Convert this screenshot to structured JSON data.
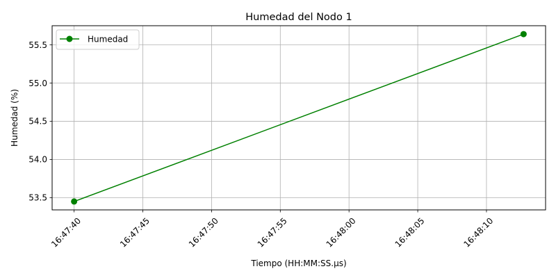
{
  "chart_data": {
    "type": "line",
    "title": "Humedad del Nodo 1",
    "xlabel": "Tiempo (HH:MM:SS.µs)",
    "ylabel": "Humedad (%)",
    "x_ticks": [
      "16:47:40",
      "16:47:45",
      "16:47:50",
      "16:47:55",
      "16:48:00",
      "16:48:05",
      "16:48:10"
    ],
    "y_ticks": [
      "53.5",
      "54.0",
      "54.5",
      "55.0",
      "55.5"
    ],
    "xlim": [
      "16:47:38.4",
      "16:48:14.3"
    ],
    "ylim": [
      53.34,
      55.75
    ],
    "grid": true,
    "legend_position": "top-left",
    "series": [
      {
        "name": "Humedad",
        "color": "#008000",
        "marker": "circle",
        "x": [
          "16:47:40",
          "16:48:12.7"
        ],
        "values": [
          53.45,
          55.64
        ]
      }
    ]
  }
}
